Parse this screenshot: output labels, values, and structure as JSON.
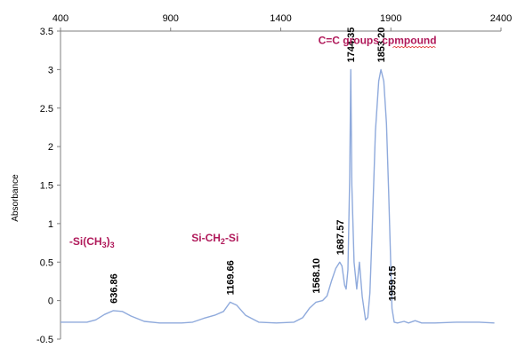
{
  "chart_data": {
    "type": "line",
    "title": "",
    "xlabel": "",
    "ylabel": "Absorbance",
    "xlim": [
      400,
      2400
    ],
    "ylim": [
      -0.5,
      3.5
    ],
    "x_ticks": [
      "400",
      "900",
      "1400",
      "1900",
      "2400"
    ],
    "y_ticks": [
      "3.5",
      "3",
      "2.5",
      "2",
      "1.5",
      "1",
      "0.5",
      "0",
      "-0.5"
    ],
    "grid": false,
    "series": [
      {
        "color": "#8faadc",
        "points": [
          [
            400,
            -0.28
          ],
          [
            450,
            -0.28
          ],
          [
            520,
            -0.28
          ],
          [
            560,
            -0.25
          ],
          [
            600,
            -0.18
          ],
          [
            640,
            -0.13
          ],
          [
            680,
            -0.14
          ],
          [
            720,
            -0.2
          ],
          [
            780,
            -0.27
          ],
          [
            850,
            -0.29
          ],
          [
            950,
            -0.29
          ],
          [
            1000,
            -0.28
          ],
          [
            1050,
            -0.23
          ],
          [
            1100,
            -0.19
          ],
          [
            1140,
            -0.14
          ],
          [
            1170,
            -0.02
          ],
          [
            1200,
            -0.06
          ],
          [
            1240,
            -0.19
          ],
          [
            1300,
            -0.28
          ],
          [
            1380,
            -0.29
          ],
          [
            1460,
            -0.28
          ],
          [
            1500,
            -0.22
          ],
          [
            1530,
            -0.1
          ],
          [
            1560,
            -0.02
          ],
          [
            1590,
            0.0
          ],
          [
            1610,
            0.06
          ],
          [
            1630,
            0.25
          ],
          [
            1650,
            0.42
          ],
          [
            1668,
            0.5
          ],
          [
            1678,
            0.45
          ],
          [
            1690,
            0.2
          ],
          [
            1697,
            0.15
          ],
          [
            1705,
            0.4
          ],
          [
            1713,
            1.6
          ],
          [
            1718,
            3.0
          ],
          [
            1723,
            1.5
          ],
          [
            1733,
            0.5
          ],
          [
            1745,
            0.15
          ],
          [
            1757,
            0.5
          ],
          [
            1770,
            0.05
          ],
          [
            1785,
            -0.25
          ],
          [
            1795,
            -0.22
          ],
          [
            1805,
            0.1
          ],
          [
            1815,
            0.9
          ],
          [
            1830,
            2.2
          ],
          [
            1845,
            2.85
          ],
          [
            1855,
            3.0
          ],
          [
            1868,
            2.85
          ],
          [
            1880,
            2.3
          ],
          [
            1890,
            1.4
          ],
          [
            1898,
            0.6
          ],
          [
            1905,
            -0.1
          ],
          [
            1915,
            -0.28
          ],
          [
            1930,
            -0.29
          ],
          [
            1960,
            -0.27
          ],
          [
            1980,
            -0.29
          ],
          [
            2010,
            -0.26
          ],
          [
            2040,
            -0.29
          ],
          [
            2100,
            -0.29
          ],
          [
            2200,
            -0.28
          ],
          [
            2300,
            -0.28
          ],
          [
            2370,
            -0.29
          ]
        ]
      }
    ],
    "peak_labels": [
      {
        "x": 640,
        "y": -0.13,
        "text": "636.86"
      },
      {
        "x": 1170,
        "y": -0.02,
        "text": "1169.66"
      },
      {
        "x": 1560,
        "y": 0.0,
        "text": "1568.10"
      },
      {
        "x": 1668,
        "y": 0.5,
        "text": "1687.57"
      },
      {
        "x": 1718,
        "y": 3.0,
        "text": "1744.35"
      },
      {
        "x": 1855,
        "y": 3.0,
        "text": "1853.20"
      },
      {
        "x": 1905,
        "y": -0.1,
        "text": "1959.15"
      }
    ],
    "group_annotations": [
      {
        "x": 440,
        "y": 0.72,
        "text": "-Si(CH3)3",
        "main": "-Si(CH",
        "sub1": "3",
        "mid": ")",
        "sub2": "3"
      },
      {
        "x": 995,
        "y": 0.77,
        "text": "Si-CH2-Si",
        "main": "Si-CH",
        "sub1": "2",
        "mid": "-Si",
        "sub2": ""
      },
      {
        "x": 1570,
        "y": 3.33,
        "text": "C=C groups cpmpound",
        "main": "C=C groups cpmpound",
        "sub1": "",
        "mid": "",
        "sub2": ""
      }
    ],
    "colors": {
      "line": "#8faadc",
      "annotation": "#b0195a",
      "axis": "#7f7f7f"
    }
  }
}
